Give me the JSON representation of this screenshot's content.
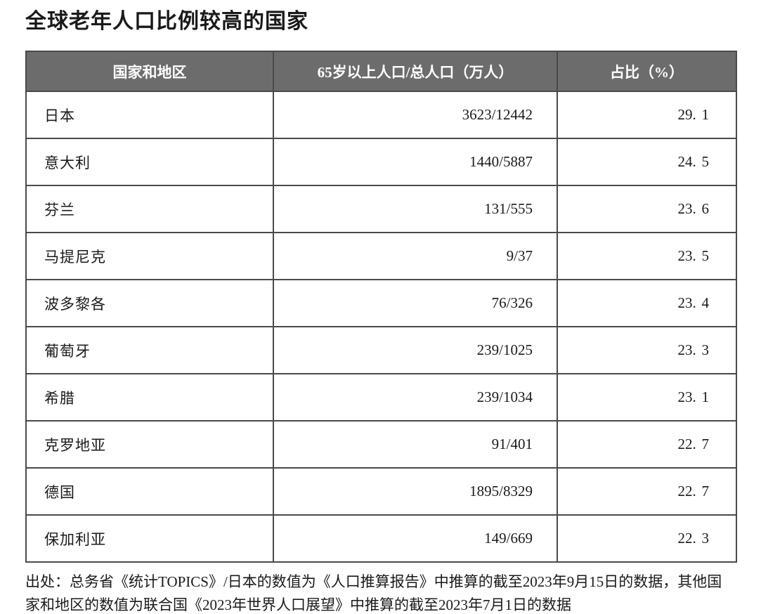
{
  "page": {
    "title": "全球老年人口比例较高的国家",
    "source_note": "出处：总务省《统计TOPICS》/日本的数值为《人口推算报告》中推算的截至2023年9月15日的数据，其他国家和地区的数值为联合国《2023年世界人口展望》中推算的截至2023年7月1日的数据"
  },
  "table": {
    "columns": {
      "country": "国家和地区",
      "population": "65岁以上人口/总人口（万人）",
      "percent": "占比（%）"
    },
    "rows": [
      {
        "country": "日本",
        "population": "3623/12442",
        "percent": "29.1"
      },
      {
        "country": "意大利",
        "population": "1440/5887",
        "percent": "24.5"
      },
      {
        "country": "芬兰",
        "population": "131/555",
        "percent": "23.6"
      },
      {
        "country": "马提尼克",
        "population": "9/37",
        "percent": "23.5"
      },
      {
        "country": "波多黎各",
        "population": "76/326",
        "percent": "23.4"
      },
      {
        "country": "葡萄牙",
        "population": "239/1025",
        "percent": "23.3"
      },
      {
        "country": "希腊",
        "population": "239/1034",
        "percent": "23.1"
      },
      {
        "country": "克罗地亚",
        "population": "91/401",
        "percent": "22.7"
      },
      {
        "country": "德国",
        "population": "1895/8329",
        "percent": "22.7"
      },
      {
        "country": "保加利亚",
        "population": "149/669",
        "percent": "22.3"
      }
    ]
  },
  "colors": {
    "header_bg": "#6c6c6c",
    "header_text": "#ffffff",
    "first_column_bg": "#c9c9c9",
    "border": "#4a4a4a",
    "body_text": "#1a1a1a",
    "page_bg": "#ffffff"
  }
}
